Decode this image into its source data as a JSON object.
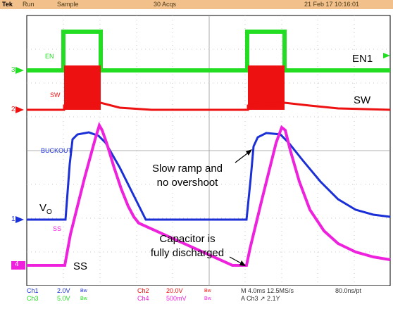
{
  "header": {
    "brand": "Tek",
    "state": "Run",
    "mode": "Sample",
    "acqs": "30 Acqs",
    "datetime": "21 Feb 17 10:16:01"
  },
  "traces": {
    "en_label": "EN",
    "sw_label": "SW",
    "buckout_label": "BUCKOUT",
    "ss_label": "SS",
    "ch3_marker": "3",
    "ch2_marker": "2",
    "ch1_marker": "1",
    "ch4_marker": "4"
  },
  "annotations": {
    "en1": "EN1",
    "sw": "SW",
    "vo_main": "V",
    "vo_sub": "O",
    "ss": "SS",
    "slow_ramp_line1": "Slow ramp and",
    "slow_ramp_line2": "no overshoot",
    "capacitor_line1": "Capacitor is",
    "capacitor_line2": "fully discharged"
  },
  "footer": {
    "ch1": "Ch1",
    "ch1_scale": "2.0V",
    "ch3": "Ch3",
    "ch3_scale": "5.0V",
    "bw": "Bw",
    "ch2": "Ch2",
    "ch2_scale": "20.0V",
    "ch4": "Ch4",
    "ch4_scale": "500mV",
    "timebase": "M 4.0ms 12.5MS/s",
    "record": "80.0ns/pt",
    "trigger": "A  Ch3  ↗  2.1Y"
  },
  "colors": {
    "ch1": "#1a2fd6",
    "ch2": "#ee1111",
    "ch3": "#22dd22",
    "ch4": "#ee22dd",
    "header_bg": "#f2c08a"
  }
}
